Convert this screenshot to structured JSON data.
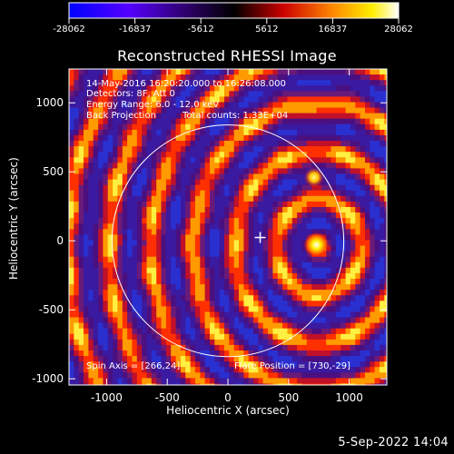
{
  "colorbar": {
    "tick_labels": [
      "-28062",
      "-16837",
      "-5612",
      "5612",
      "16837",
      "28062"
    ],
    "colors": [
      "#0000ff",
      "#4400ff",
      "#000000",
      "#ff0000",
      "#ffff00",
      "#ffffff"
    ]
  },
  "title": "Reconstructed RHESSI Image",
  "annotations": {
    "time_range": "14-May-2016 16:20:20.000 to 16:26:08.000",
    "detectors": "Detectors: 8F, Att 0",
    "energy_range": "Energy Range: 6.0 - 12.0 keV",
    "method": "Back Projection",
    "total_counts": "Total counts: 1.33E+04",
    "spin_axis": "Spin Axis = [266,24]",
    "flare_position": "Flare Position = [730,-29]"
  },
  "footer_date": "5-Sep-2022 14:04",
  "chart_data": {
    "type": "heatmap",
    "title": "Reconstructed RHESSI Image",
    "xlabel": "Heliocentric X (arcsec)",
    "ylabel": "Heliocentric Y (arcsec)",
    "xlim": [
      -1310,
      1310
    ],
    "ylim": [
      -1045,
      1245
    ],
    "x_ticks": [
      -1000,
      -500,
      0,
      500,
      1000
    ],
    "y_ticks": [
      -1000,
      -500,
      0,
      500,
      1000
    ],
    "x_tick_labels": [
      "-1000",
      "-500",
      "0",
      "500",
      "1000"
    ],
    "y_tick_labels": [
      "-1000",
      "-500",
      "0",
      "500",
      "1000"
    ],
    "colorbar_range": [
      -28062,
      28062
    ],
    "solar_limb_radius": 955,
    "flare_position": [
      730,
      -29
    ],
    "spin_axis": [
      266,
      24
    ],
    "peaks": [
      {
        "x": 730,
        "y": -29,
        "value": 28062
      },
      {
        "x": 710,
        "y": 460,
        "value": 21000
      }
    ],
    "colormap": [
      "#0000ff",
      "#4400ff",
      "#000000",
      "#ff0000",
      "#ffff00",
      "#ffffff"
    ]
  }
}
